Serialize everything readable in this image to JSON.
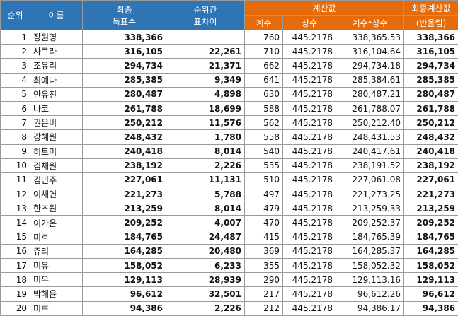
{
  "headers": {
    "rank": "순위",
    "name": "이름",
    "final_votes_line1": "최종",
    "final_votes_line2": "득표수",
    "gap_line1": "순위간",
    "gap_line2": "표차이",
    "calc_group": "계산값",
    "coef": "계수",
    "const": "상수",
    "product": "계수*상수",
    "final_calc_line1": "최종계산값",
    "final_calc_line2": "(반올림)"
  },
  "rows": [
    {
      "rank": "1",
      "name": "장원영",
      "votes": "338,366",
      "gap": "",
      "coef": "760",
      "const": "445.2178",
      "product": "338,365.53",
      "final": "338,366"
    },
    {
      "rank": "2",
      "name": "사쿠라",
      "votes": "316,105",
      "gap": "22,261",
      "coef": "710",
      "const": "445.2178",
      "product": "316,104.64",
      "final": "316,105"
    },
    {
      "rank": "3",
      "name": "조유리",
      "votes": "294,734",
      "gap": "21,371",
      "coef": "662",
      "const": "445.2178",
      "product": "294,734.18",
      "final": "294,734"
    },
    {
      "rank": "4",
      "name": "최예나",
      "votes": "285,385",
      "gap": "9,349",
      "coef": "641",
      "const": "445.2178",
      "product": "285,384.61",
      "final": "285,385"
    },
    {
      "rank": "5",
      "name": "안유진",
      "votes": "280,487",
      "gap": "4,898",
      "coef": "630",
      "const": "445.2178",
      "product": "280,487.21",
      "final": "280,487"
    },
    {
      "rank": "6",
      "name": "나코",
      "votes": "261,788",
      "gap": "18,699",
      "coef": "588",
      "const": "445.2178",
      "product": "261,788.07",
      "final": "261,788"
    },
    {
      "rank": "7",
      "name": "권은비",
      "votes": "250,212",
      "gap": "11,576",
      "coef": "562",
      "const": "445.2178",
      "product": "250,212.40",
      "final": "250,212"
    },
    {
      "rank": "8",
      "name": "강혜원",
      "votes": "248,432",
      "gap": "1,780",
      "coef": "558",
      "const": "445.2178",
      "product": "248,431.53",
      "final": "248,432"
    },
    {
      "rank": "9",
      "name": "히토미",
      "votes": "240,418",
      "gap": "8,014",
      "coef": "540",
      "const": "445.2178",
      "product": "240,417.61",
      "final": "240,418"
    },
    {
      "rank": "10",
      "name": "김채원",
      "votes": "238,192",
      "gap": "2,226",
      "coef": "535",
      "const": "445.2178",
      "product": "238,191.52",
      "final": "238,192"
    },
    {
      "rank": "11",
      "name": "김민주",
      "votes": "227,061",
      "gap": "11,131",
      "coef": "510",
      "const": "445.2178",
      "product": "227,061.08",
      "final": "227,061"
    },
    {
      "rank": "12",
      "name": "이채연",
      "votes": "221,273",
      "gap": "5,788",
      "coef": "497",
      "const": "445.2178",
      "product": "221,273.25",
      "final": "221,273"
    },
    {
      "rank": "13",
      "name": "한초원",
      "votes": "213,259",
      "gap": "8,014",
      "coef": "479",
      "const": "445.2178",
      "product": "213,259.33",
      "final": "213,259"
    },
    {
      "rank": "14",
      "name": "이가은",
      "votes": "209,252",
      "gap": "4,007",
      "coef": "470",
      "const": "445.2178",
      "product": "209,252.37",
      "final": "209,252"
    },
    {
      "rank": "15",
      "name": "미호",
      "votes": "184,765",
      "gap": "24,487",
      "coef": "415",
      "const": "445.2178",
      "product": "184,765.39",
      "final": "184,765"
    },
    {
      "rank": "16",
      "name": "쥬리",
      "votes": "164,285",
      "gap": "20,480",
      "coef": "369",
      "const": "445.2178",
      "product": "164,285.37",
      "final": "164,285"
    },
    {
      "rank": "17",
      "name": "미유",
      "votes": "158,052",
      "gap": "6,233",
      "coef": "355",
      "const": "445.2178",
      "product": "158,052.32",
      "final": "158,052"
    },
    {
      "rank": "18",
      "name": "미우",
      "votes": "129,113",
      "gap": "28,939",
      "coef": "290",
      "const": "445.2178",
      "product": "129,113.16",
      "final": "129,113"
    },
    {
      "rank": "19",
      "name": "박해윤",
      "votes": "96,612",
      "gap": "32,501",
      "coef": "217",
      "const": "445.2178",
      "product": "96,612.26",
      "final": "96,612"
    },
    {
      "rank": "20",
      "name": "미루",
      "votes": "94,386",
      "gap": "2,226",
      "coef": "212",
      "const": "445.2178",
      "product": "94,386.17",
      "final": "94,386"
    }
  ],
  "colors": {
    "header_blue": "#2e75b6",
    "header_orange": "#e46c0a"
  }
}
